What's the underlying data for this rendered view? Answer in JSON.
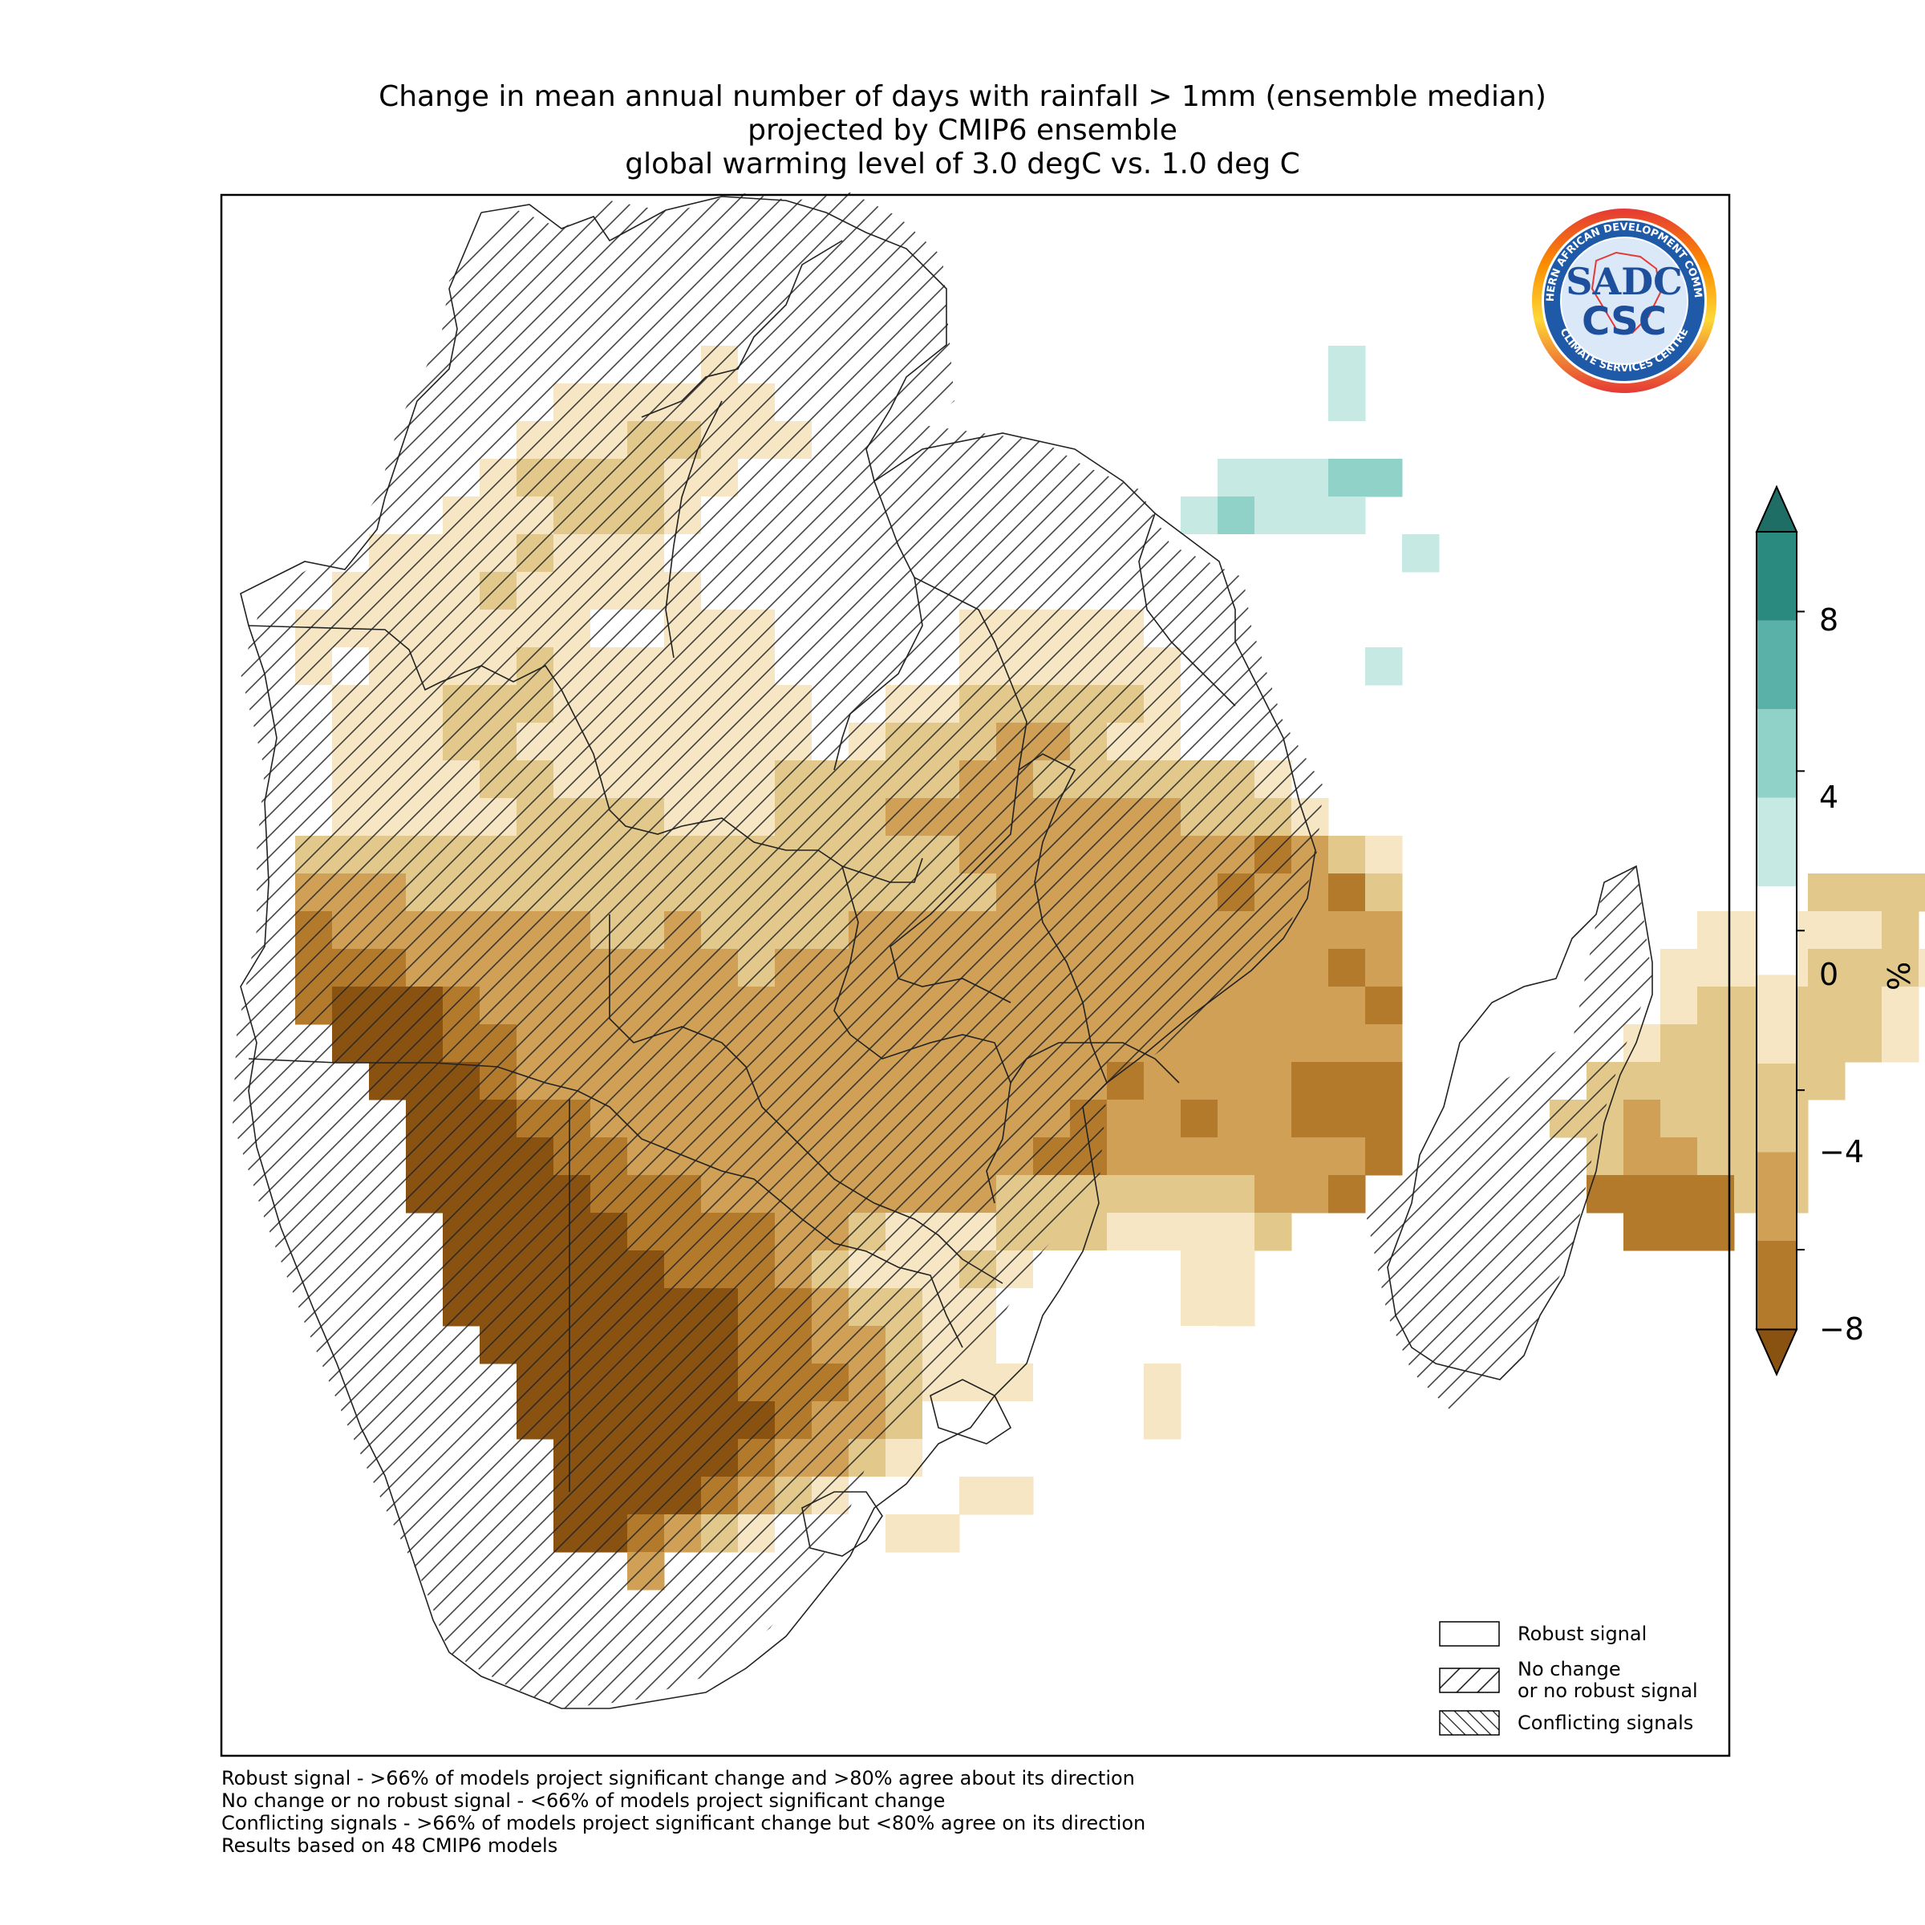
{
  "title": {
    "line1": "Change in mean annual number of days with rainfall > 1mm (ensemble median)",
    "line2": "projected by CMIP6 ensemble",
    "line3": "global warming level of 3.0 degC vs. 1.0 deg C"
  },
  "logo": {
    "ring_text_top": "SOUTHERN AFRICAN DEVELOPMENT COMMUNITY",
    "ring_text_bottom": "CLIMATE SERVICES CENTRE",
    "mark_top": "SADC",
    "mark_bottom": "CSC"
  },
  "legend": {
    "robust": "Robust signal",
    "no_change_line1": "No change",
    "no_change_line2": "or no robust signal",
    "conflicting": "Conflicting signals"
  },
  "footnotes": [
    "Robust signal - >66% of models project significant change and >80% agree about its direction",
    "No change or no robust signal - <66% of models project significant change",
    "Conflicting signals - >66% of models project significant change but <80% agree on its direction",
    "Results based on 48 CMIP6 models"
  ],
  "colorbar": {
    "unit": "%",
    "ticks": [
      "8",
      "4",
      "0",
      "−4",
      "−8"
    ],
    "bins": [
      {
        "range": "8 to 10",
        "color": "#2a8a80"
      },
      {
        "range": "6 to 8",
        "color": "#5ab1a8"
      },
      {
        "range": "4 to 6",
        "color": "#90d2c8"
      },
      {
        "range": "2 to 4",
        "color": "#c6e9e3"
      },
      {
        "range": "-2 to 2",
        "color": "#ffffff"
      },
      {
        "range": "-4 to -2",
        "color": "#f6e6c3"
      },
      {
        "range": "-6 to -4",
        "color": "#e2c88a"
      },
      {
        "range": "-8 to -6",
        "color": "#cfa055"
      },
      {
        "range": "-10 to -8",
        "color": "#b47a2c"
      }
    ],
    "extend_high_color": "#1e6e66",
    "extend_low_color": "#8a5210"
  },
  "chart_data": {
    "type": "heatmap",
    "description_of_values": "percent change in mean annual number of days with rainfall > 1mm",
    "value_classes": {
      "T3": "2 to 4",
      "T4": "4 to 6",
      "W": "-2 to 2",
      "A": "-4 to -2",
      "B": "-6 to -4",
      "C": "-8 to -6",
      "D": "-10 to -8",
      "E": "< -10"
    },
    "grid_rows": [
      "....................................................",
      "....................................................",
      "....................................................",
      "..........WWWWWWWWWWWWWWWWWWWWW.....................",
      ".........WWWWAWWWWWWWWWWWWWWWWT3....................",
      ".........AAAAAAWWWWWWWWWWWWWWWT3....................",
      "........AAABBAAAWWWWWWWWWWWWWWW.....................",
      ".......ABBBBAAWWWWWWWWWWWWWT3T3T3T4T4...............",
      "......AAABBBAWWWWWWWWWWWWWT3T4T3T3T3................",
      "....AAAABAAAWWWWWWWWWWWWWWWWWWWWT3..................",
      "...AAAABAAAAAWWWWWWWWWWWWWWWWWWW....................",
      "..AAAAAAAAWWAAAWWWWWAAAAAWWWWWW.....................",
      "..AWAAAABAAAAAAWWWWWAAAAAAWWWWWT3...................",
      "..WAAABBBAAAAAAAWWAABBBBBAWWWW......................",
      "..WAAABBAAAAAAAAWABBBCCBAAWWW.......................",
      "..WAAAABBAAAAAABBBBBCCBBBBBBA.......................",
      "..WAAAAABBBBAAABBBCCCCCCCCBBBA......................",
      "..BBBBBBBBBBBBBBBBBBCCCCCCCCDCBA....................",
      "..CCCBBBBBBBBBBBBBBBBCCCCCCDCCDB...........BBBB.....",
      "..DCCCCCCCBBCBBBBCCCCCCCCCCCCCCC........AAAAAB......",
      "..DDDCCCCCCCCCBCCCCCCCCCCCCCCCDC.......AAAABBBA.....",
      "..DEEEDCCCCCCCCCCCCCCCCCCCCCCCCD.......ABBBBBA......",
      "...EEEDDCCCCCCCCCCCCCCCCCCCCCCCC......ABBBBBBA......",
      "....EEEDCCCCCCCCCCCCCCCCDCCCCDDD.....BBBBBBB........",
      ".....EEEDDCCCCCCCCCCCCCDCCDCCDDD....BBCBBBB.........",
      ".....EEEEDDCCCCCCCCCCCDDCCCCCCCD.....BCCBBB.........",
      ".....EEEEEDDDCCCCCCCCBBBBBBBCCD......DDDDBB.........",
      "......EEEEEDDDDCCBAAABBBAAAAB.........DDD...........",
      "......EEEEEEDDDCBAAABAWWWWAA........................",
      "......EEEEEEEEDDCBBAAWWWWWAA........................",
      ".......EEEEEEEDDCCBAAWWWWWW.........................",
      "........EEEEEEDDDCBAAAWWWA..........................",
      "........EEEEEEEDCCBWWWWWWA..........................",
      ".........EEEEEDCCBAWWWW.............................",
      ".........EEEEDCBAWWWAA..............................",
      ".........EEDCBAWWWAA................................",
      "...........C........................................"
    ]
  }
}
